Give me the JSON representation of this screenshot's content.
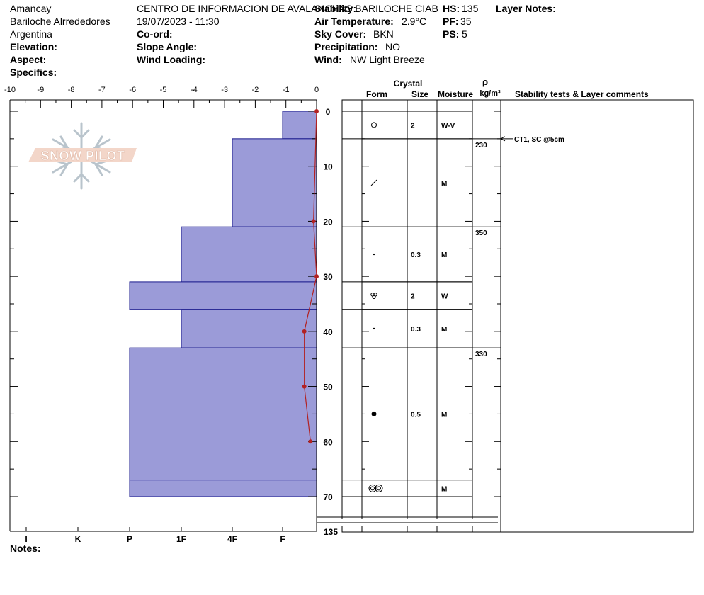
{
  "header": {
    "location": "Amancay",
    "region": "Bariloche Alrrededores",
    "country": "Argentina",
    "elevation_label": "Elevation:",
    "aspect_label": "Aspect:",
    "specifics_label": "Specifics:",
    "organization": "CENTRO DE INFORMACION DE AVALANCHAS BARILOCHE CIAB",
    "datetime": "19/07/2023 - 11:30",
    "coord_label": "Co-ord:",
    "slope_label": "Slope Angle:",
    "wind_loading_label": "Wind Loading:",
    "stability_label": "Stability:",
    "air_temp_label": "Air Temperature:",
    "air_temp_value": "2.9°C",
    "sky_label": "Sky Cover:",
    "sky_value": "BKN",
    "precip_label": "Precipitation:",
    "precip_value": "NO",
    "wind_label": "Wind:",
    "wind_value": "NW Light Breeze",
    "hs_label": "HS:",
    "hs_value": "135",
    "pf_label": "PF:",
    "pf_value": "35",
    "ps_label": "PS:",
    "ps_value": "5",
    "layer_notes_label": "Layer Notes:",
    "notes_label": "Notes:"
  },
  "logo": {
    "text": "SNOW PILOT",
    "icon": "snowflake-icon"
  },
  "colors": {
    "hardness_fill": "#9b9bd8",
    "hardness_stroke": "#1a1a8c",
    "temp_line": "#b22222"
  },
  "columns": {
    "crystal": "Crystal",
    "form": "Form",
    "size": "Size",
    "moisture": "Moisture",
    "rho": "ρ",
    "density_unit": "kg/m³",
    "comments": "Stability tests & Layer comments"
  },
  "chart_data": {
    "type": "snow-profile",
    "temperature_axis": {
      "ticks": [
        -10,
        -9,
        -8,
        -7,
        -6,
        -5,
        -4,
        -3,
        -2,
        -1,
        0
      ],
      "range": [
        -10,
        0
      ]
    },
    "depth_axis": {
      "ticks": [
        0,
        10,
        20,
        30,
        40,
        50,
        60,
        70
      ],
      "range": [
        0,
        70
      ],
      "bottom_label": "135"
    },
    "hardness_axis": {
      "labels": [
        "I",
        "K",
        "P",
        "1F",
        "4F",
        "F"
      ]
    },
    "temperature_profile": [
      {
        "depth": 0,
        "temp": 0
      },
      {
        "depth": 20,
        "temp": -0.1
      },
      {
        "depth": 30,
        "temp": 0
      },
      {
        "depth": 40,
        "temp": -0.4
      },
      {
        "depth": 50,
        "temp": -0.4
      },
      {
        "depth": 60,
        "temp": -0.2
      }
    ],
    "hardness_layers": [
      {
        "top": 0,
        "bottom": 5,
        "hardness": "F"
      },
      {
        "top": 5,
        "bottom": 21,
        "hardness": "4F"
      },
      {
        "top": 21,
        "bottom": 31,
        "hardness": "1F"
      },
      {
        "top": 31,
        "bottom": 36,
        "hardness": "P"
      },
      {
        "top": 36,
        "bottom": 43,
        "hardness": "1F"
      },
      {
        "top": 43,
        "bottom": 67,
        "hardness": "P"
      },
      {
        "top": 67,
        "bottom": 70,
        "hardness": "P"
      }
    ],
    "layers": [
      {
        "top": 0,
        "bottom": 5,
        "form": "rounding-facets-icon",
        "size": "2",
        "moisture": "W-V"
      },
      {
        "top": 5,
        "bottom": 21,
        "form": "facet-slash-icon",
        "size": "",
        "moisture": "M"
      },
      {
        "top": 21,
        "bottom": 31,
        "form": "small-dot-icon",
        "size": "0.3",
        "moisture": "M"
      },
      {
        "top": 31,
        "bottom": 36,
        "form": "clustered-grains-icon",
        "size": "2",
        "moisture": "W"
      },
      {
        "top": 36,
        "bottom": 43,
        "form": "small-dot-icon",
        "size": "0.3",
        "moisture": "M"
      },
      {
        "top": 43,
        "bottom": 67,
        "form": "large-dot-icon",
        "size": "0.5",
        "moisture": "M"
      },
      {
        "top": 67,
        "bottom": 70,
        "form": "melt-forms-icon",
        "size": "",
        "moisture": "M"
      }
    ],
    "densities": [
      {
        "top": 5,
        "bottom": 21,
        "value": "230"
      },
      {
        "top": 21,
        "bottom": 43,
        "value": "350"
      },
      {
        "top": 43,
        "bottom": 70,
        "value": "330"
      }
    ],
    "stability_tests": [
      {
        "depth": 5,
        "text": "CT1, SC @5cm"
      }
    ]
  }
}
